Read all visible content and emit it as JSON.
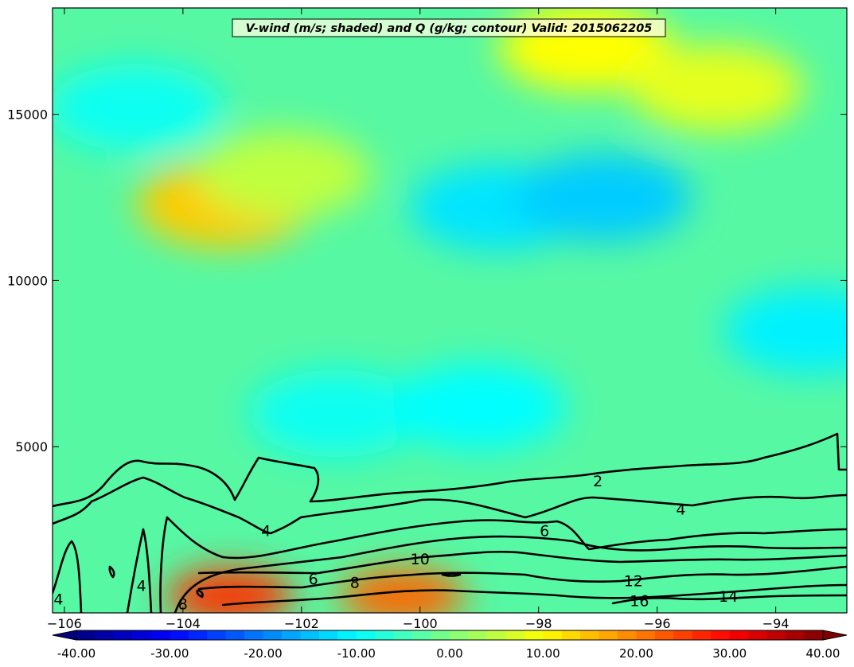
{
  "chart_data": {
    "type": "contour",
    "title": "V-wind (m/s; shaded) and Q (g/kg; contour) Valid: 2015062205",
    "xlabel": "",
    "ylabel": "",
    "xlim": [
      -106.2,
      -92.8
    ],
    "ylim": [
      0,
      18200
    ],
    "x_ticks": [
      -106,
      -104,
      -102,
      -100,
      -98,
      -96,
      -94
    ],
    "x_tick_labels": [
      "−106",
      "−104",
      "−102",
      "−100",
      "−98",
      "−96",
      "−94"
    ],
    "y_ticks": [
      5000,
      10000,
      15000
    ],
    "y_tick_labels": [
      "5000",
      "10000",
      "15000"
    ],
    "grid": false,
    "shaded_field": {
      "name": "V-wind",
      "units": "m/s",
      "colormap": "jet",
      "range": [
        -40,
        40
      ],
      "colorbar_ticks": [
        -40,
        -30,
        -20,
        -10,
        0,
        10,
        20,
        30,
        40
      ],
      "colorbar_tick_labels": [
        "-40.00",
        "-30.00",
        "-20.00",
        "-10.00",
        "0.00",
        "10.00",
        "20.00",
        "30.00",
        "40.00"
      ],
      "colorbar_orientation": "horizontal",
      "colorbar_extend": "both",
      "features": [
        {
          "x": -103.3,
          "y": 12300,
          "value": 14
        },
        {
          "x": -103.2,
          "y": 500,
          "value": 26
        },
        {
          "x": -100.3,
          "y": 500,
          "value": 22
        },
        {
          "x": -97.2,
          "y": 17000,
          "value": 10
        },
        {
          "x": -98.7,
          "y": 12200,
          "value": -12
        },
        {
          "x": -96.9,
          "y": 12500,
          "value": -14
        },
        {
          "x": -93.4,
          "y": 8500,
          "value": -11
        },
        {
          "x": -104.8,
          "y": 15200,
          "value": -9
        },
        {
          "x": -101.4,
          "y": 6000,
          "value": -9
        },
        {
          "x": -99.0,
          "y": 6200,
          "value": -10
        },
        {
          "x": -102.3,
          "y": 13200,
          "value": 5
        },
        {
          "x": -95.0,
          "y": 15800,
          "value": 8
        }
      ]
    },
    "contour_field": {
      "name": "Q",
      "units": "g/kg",
      "levels": [
        2,
        4,
        6,
        8,
        10,
        12,
        14,
        16
      ],
      "labels": [
        {
          "text": "2",
          "x": -97.0,
          "y": 3950
        },
        {
          "text": "4",
          "x": -95.6,
          "y": 3100
        },
        {
          "text": "4",
          "x": -102.6,
          "y": 2450
        },
        {
          "text": "4",
          "x": -106.1,
          "y": 400
        },
        {
          "text": "4",
          "x": -104.7,
          "y": 800
        },
        {
          "text": "6",
          "x": -97.9,
          "y": 2450
        },
        {
          "text": "6",
          "x": -101.8,
          "y": 1000
        },
        {
          "text": "8",
          "x": -101.1,
          "y": 900
        },
        {
          "text": "8",
          "x": -104.0,
          "y": 250
        },
        {
          "text": "10",
          "x": -100.0,
          "y": 1600
        },
        {
          "text": "12",
          "x": -96.4,
          "y": 950
        },
        {
          "text": "14",
          "x": -94.8,
          "y": 480
        },
        {
          "text": "16",
          "x": -96.3,
          "y": 350
        }
      ]
    }
  }
}
